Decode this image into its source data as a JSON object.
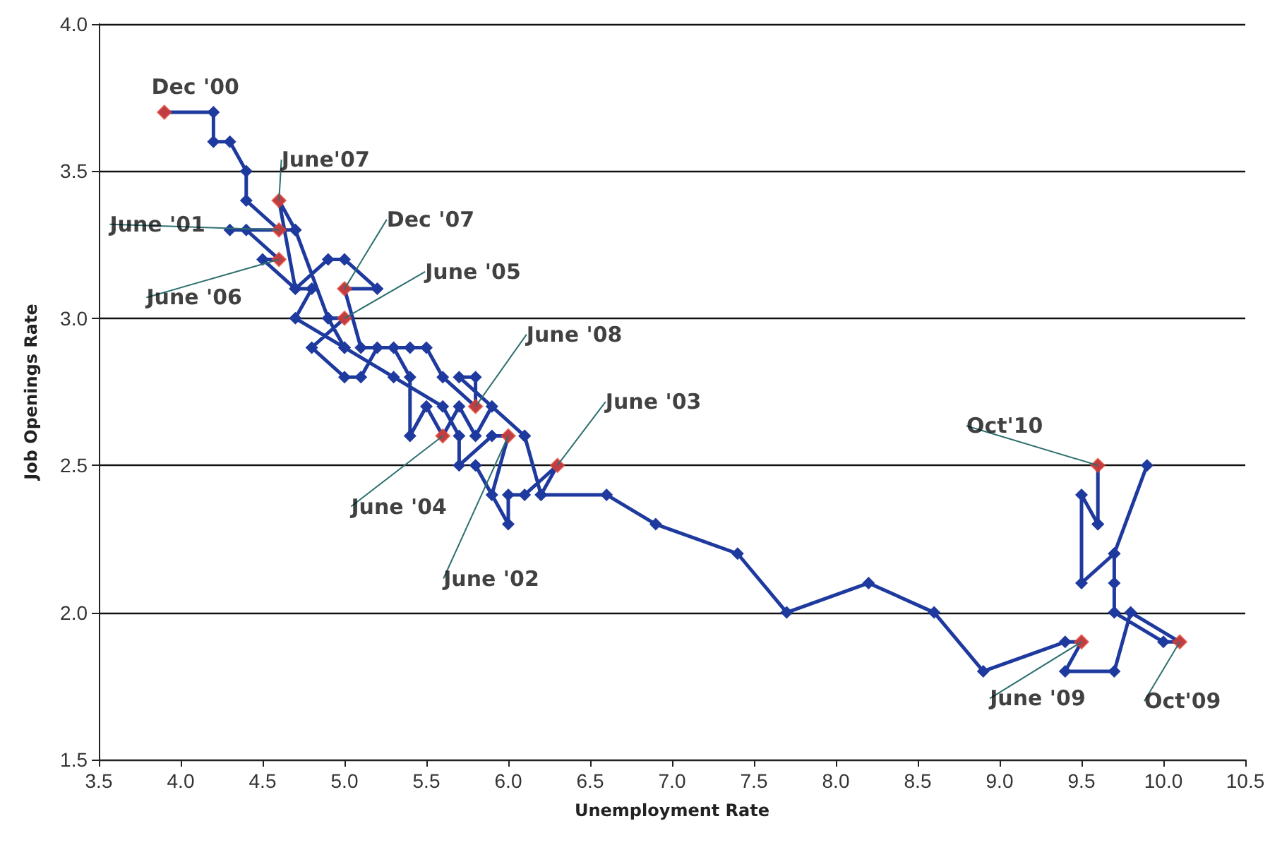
{
  "chart_data": {
    "type": "line",
    "xlabel": "Unemployment Rate",
    "ylabel": "Job Openings Rate",
    "xlim": [
      3.5,
      10.5
    ],
    "ylim": [
      1.5,
      4.0
    ],
    "xticks": [
      {
        "value": 3.5,
        "label": "3.5"
      },
      {
        "value": 4,
        "label": "4.0"
      },
      {
        "value": 4.5,
        "label": "4.5"
      },
      {
        "value": 5,
        "label": "5.0"
      },
      {
        "value": 5.5,
        "label": "5.5"
      },
      {
        "value": 6,
        "label": "6.0"
      },
      {
        "value": 6.5,
        "label": "6.5"
      },
      {
        "value": 7,
        "label": "7.0"
      },
      {
        "value": 7.5,
        "label": "7.5"
      },
      {
        "value": 8,
        "label": "8.0"
      },
      {
        "value": 8.5,
        "label": "8.5"
      },
      {
        "value": 9,
        "label": "9.0"
      },
      {
        "value": 9.5,
        "label": "9.5"
      },
      {
        "value": 10,
        "label": "10.0"
      },
      {
        "value": 10.5,
        "label": "10.5"
      }
    ],
    "yticks": [
      {
        "value": 1.5,
        "label": "1.5"
      },
      {
        "value": 2,
        "label": "2.0"
      },
      {
        "value": 2.5,
        "label": "2.5"
      },
      {
        "value": 3,
        "label": "3.0"
      },
      {
        "value": 3.5,
        "label": "3.5"
      },
      {
        "value": 4,
        "label": "4.0"
      }
    ],
    "grid": "y",
    "marker": "diamond",
    "line_style": "solid",
    "series": [
      {
        "color": "#1f3a9e",
        "x": [
          3.9,
          4.2,
          4.2,
          4.3,
          4.4,
          4.4,
          4.6,
          4.3,
          4.7,
          4.9,
          5.0,
          5.3,
          5.6,
          5.7,
          5.7,
          5.9,
          6.0,
          5.9,
          5.8,
          6.0,
          6.0,
          6.1,
          6.3,
          6.2,
          6.1,
          5.9,
          5.8,
          5.7,
          5.6,
          5.5,
          5.4,
          5.4,
          5.3,
          5.2,
          5.1,
          5.0,
          4.8,
          5.0,
          4.9,
          5.0,
          4.7,
          4.8,
          4.7,
          4.5,
          4.6,
          4.4,
          4.7,
          4.6,
          4.7,
          4.9,
          5.0,
          5.2,
          5.0,
          5.1,
          5.4,
          5.5,
          5.6,
          5.8,
          5.8,
          5.7,
          6.1,
          6.2,
          6.6,
          6.9,
          7.4,
          7.7,
          8.2,
          8.6,
          8.9,
          9.4,
          9.5,
          9.4,
          9.7,
          9.8,
          10.1,
          10.0,
          9.7,
          9.7,
          9.7,
          9.9,
          9.7,
          9.5,
          9.5,
          9.6,
          9.6,
          9.6
        ],
        "values": [
          3.7,
          3.7,
          3.6,
          3.6,
          3.5,
          3.4,
          3.3,
          3.3,
          3.3,
          3.0,
          2.9,
          2.8,
          2.7,
          2.6,
          2.5,
          2.6,
          2.6,
          2.4,
          2.5,
          2.3,
          2.4,
          2.4,
          2.5,
          2.4,
          2.6,
          2.7,
          2.6,
          2.7,
          2.6,
          2.7,
          2.6,
          2.8,
          2.9,
          2.9,
          2.8,
          2.8,
          2.9,
          3.0,
          3.0,
          2.9,
          3.0,
          3.1,
          3.1,
          3.2,
          3.2,
          3.3,
          3.3,
          3.4,
          3.1,
          3.2,
          3.2,
          3.1,
          3.1,
          2.9,
          2.9,
          2.9,
          2.8,
          2.7,
          2.8,
          2.8,
          2.6,
          2.4,
          2.4,
          2.3,
          2.2,
          2.0,
          2.1,
          2.0,
          1.8,
          1.9,
          1.9,
          1.8,
          1.8,
          2.0,
          1.9,
          1.9,
          2.0,
          2.1,
          2.2,
          2.5,
          2.2,
          2.1,
          2.4,
          2.3,
          2.3,
          2.5
        ]
      },
      {
        "type": "scatter",
        "color": "#e8402a",
        "x": [
          3.9,
          4.6,
          4.6,
          4.6,
          5.0,
          5.0,
          5.8,
          6.3,
          5.6,
          6.0,
          9.6,
          9.5,
          10.1
        ],
        "values": [
          3.7,
          3.4,
          3.3,
          3.2,
          3.1,
          3.0,
          2.7,
          2.5,
          2.6,
          2.6,
          2.5,
          1.9,
          1.9
        ]
      }
    ],
    "annotations": [
      {
        "text": "Dec '00",
        "x": 3.9,
        "y": 3.7
      },
      {
        "text": "June'07",
        "x": 4.6,
        "y": 3.4
      },
      {
        "text": "June '01",
        "x": 4.6,
        "y": 3.3
      },
      {
        "text": "June '06",
        "x": 4.6,
        "y": 3.2
      },
      {
        "text": "Dec '07",
        "x": 5.0,
        "y": 3.1
      },
      {
        "text": "June '05",
        "x": 5.0,
        "y": 3.0
      },
      {
        "text": "June '08",
        "x": 5.8,
        "y": 2.7
      },
      {
        "text": "June '03",
        "x": 6.3,
        "y": 2.5
      },
      {
        "text": "June '04",
        "x": 5.6,
        "y": 2.6
      },
      {
        "text": "June '02",
        "x": 6.0,
        "y": 2.6
      },
      {
        "text": "Oct'10",
        "x": 9.6,
        "y": 2.5
      },
      {
        "text": "June '09",
        "x": 9.5,
        "y": 1.9
      },
      {
        "text": "Oct'09",
        "x": 10.1,
        "y": 1.9
      }
    ]
  }
}
